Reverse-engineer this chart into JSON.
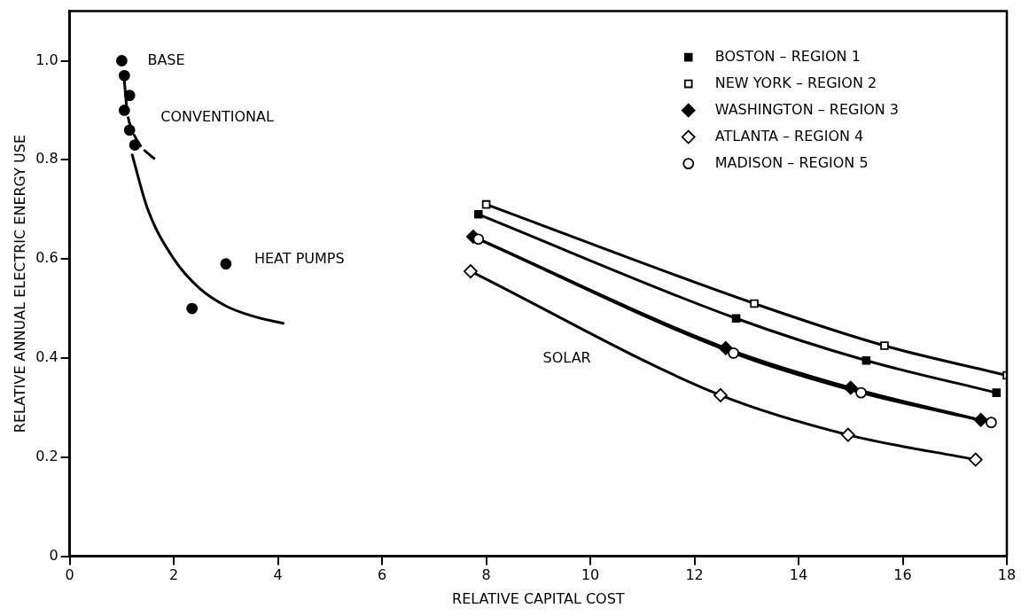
{
  "chart_data": {
    "type": "line",
    "xlabel": "RELATIVE CAPITAL COST",
    "ylabel": "RELATIVE ANNUAL ELECTRIC ENERGY USE",
    "xlim": [
      0,
      18
    ],
    "xticks": [
      0,
      2,
      4,
      6,
      8,
      10,
      12,
      14,
      16,
      18
    ],
    "ylim": [
      0,
      1.1
    ],
    "yticks": [
      0,
      {
        "value": 0.2,
        "label": "0.2"
      },
      {
        "value": 0.4,
        "label": "0.4"
      },
      {
        "value": 0.6,
        "label": "0.6"
      },
      {
        "value": 0.8,
        "label": "0.8"
      },
      {
        "value": 1,
        "label": "1.0"
      }
    ],
    "grid": false,
    "legend": "top right",
    "annotations": [
      "BASE",
      "CONVENTIONAL",
      "HEAT PUMPS",
      "SOLAR"
    ],
    "series": [
      {
        "name": "BOSTON – REGION 1",
        "color": "#000000",
        "marker": "square",
        "x": [
          7.85,
          12.8,
          15.3,
          17.8
        ],
        "values": [
          0.69,
          0.48,
          0.395,
          0.33
        ]
      },
      {
        "name": "NEW YORK – REGION 2",
        "color": "#000000",
        "marker": "square",
        "colors": [
          "#ffffff",
          "#ffffff",
          "#ffffff",
          "#ffffff"
        ],
        "x": [
          8.0,
          13.15,
          15.65,
          18.0
        ],
        "values": [
          0.71,
          0.51,
          0.425,
          0.365
        ]
      },
      {
        "name": "WASHINGTON – REGION 3",
        "color": "#000000",
        "marker": "diamond",
        "x": [
          7.75,
          12.6,
          15.0,
          17.5
        ],
        "values": [
          0.645,
          0.42,
          0.34,
          0.275
        ]
      },
      {
        "name": "ATLANTA – REGION 4",
        "color": "#000000",
        "marker": "diamond",
        "colors": [
          "#ffffff",
          "#ffffff",
          "#ffffff",
          "#ffffff"
        ],
        "x": [
          7.7,
          12.5,
          14.95,
          17.4
        ],
        "values": [
          0.575,
          0.325,
          0.245,
          0.195
        ]
      },
      {
        "name": "MADISON – REGION 5",
        "color": "#000000",
        "marker": "circle",
        "colors": [
          "#ffffff",
          "#ffffff",
          "#ffffff",
          "#ffffff"
        ],
        "x": [
          7.85,
          12.75,
          15.2,
          17.7
        ],
        "values": [
          0.64,
          0.41,
          0.33,
          0.27
        ]
      },
      {
        "type": "scatter",
        "color": "#000000",
        "marker": "circle",
        "x": [
          1.0
        ],
        "values": [
          1.0
        ]
      },
      {
        "type": "scatter",
        "color": "#000000",
        "marker": "circle",
        "x": [
          1.05,
          1.15,
          1.05,
          1.15,
          1.25,
          3.0,
          2.35
        ],
        "values": [
          0.97,
          0.93,
          0.9,
          0.86,
          0.83,
          0.59,
          0.5
        ]
      },
      {
        "type": "line",
        "color": "#000000",
        "marker": "none",
        "line_style": "dashed",
        "x": [
          1.05,
          1.1,
          1.2,
          1.35,
          1.65
        ],
        "values": [
          0.96,
          0.9,
          0.86,
          0.83,
          0.8
        ]
      },
      {
        "type": "line",
        "color": "#000000",
        "marker": "none",
        "x": [
          1.2,
          1.5,
          2.0,
          2.5,
          3.0,
          3.5,
          4.1
        ],
        "values": [
          0.81,
          0.7,
          0.6,
          0.54,
          0.505,
          0.485,
          0.47
        ]
      }
    ]
  }
}
